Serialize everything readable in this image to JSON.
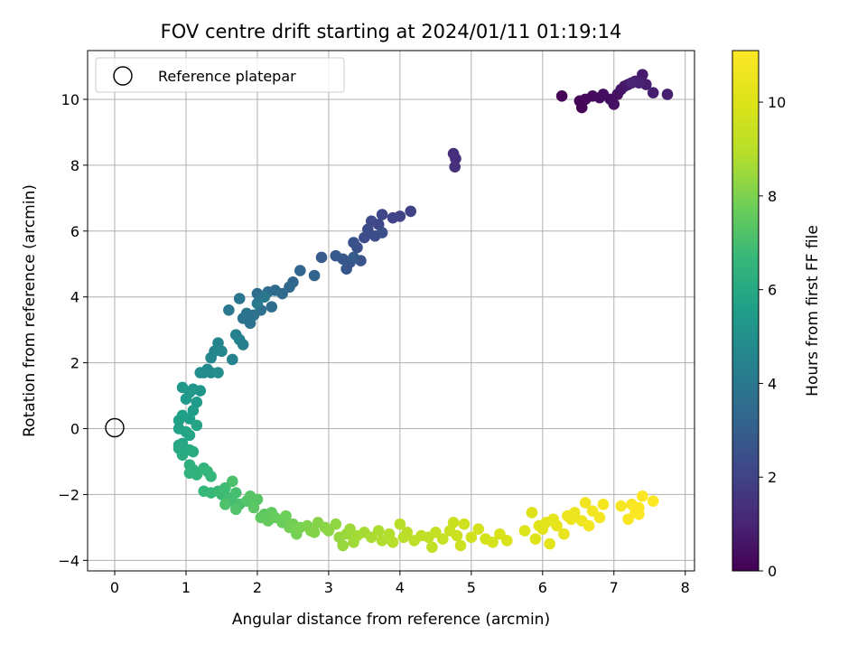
{
  "chart_data": {
    "type": "scatter",
    "title": "FOV centre drift starting at 2024/01/11 01:19:14",
    "xlabel": "Angular distance from reference (arcmin)",
    "ylabel": "Rotation from reference (arcmin)",
    "xlim": [
      -0.38,
      8.13
    ],
    "ylim": [
      -4.32,
      11.48
    ],
    "xticks": [
      "0",
      "1",
      "2",
      "3",
      "4",
      "5",
      "6",
      "7",
      "8"
    ],
    "yticks": [
      "−4",
      "−2",
      "0",
      "2",
      "4",
      "6",
      "8",
      "10"
    ],
    "grid": true,
    "legend": {
      "position": "top-left",
      "entries": [
        "Reference platepar"
      ]
    },
    "reference_point": {
      "x": 0,
      "y": 0
    },
    "colorbar": {
      "label": "Hours from first FF file",
      "range": [
        0,
        11.1
      ],
      "ticks": [
        "0",
        "2",
        "4",
        "6",
        "8",
        "10"
      ],
      "colormap": "viridis"
    },
    "points": [
      [
        6.27,
        10.1,
        0.05
      ],
      [
        6.52,
        9.95,
        0.1
      ],
      [
        6.55,
        9.75,
        0.15
      ],
      [
        6.6,
        10.0,
        0.2
      ],
      [
        6.7,
        10.1,
        0.25
      ],
      [
        6.8,
        10.05,
        0.3
      ],
      [
        6.85,
        10.15,
        0.35
      ],
      [
        6.95,
        10.0,
        0.4
      ],
      [
        7.0,
        9.85,
        0.45
      ],
      [
        7.05,
        10.15,
        0.5
      ],
      [
        7.1,
        10.3,
        0.55
      ],
      [
        7.15,
        10.4,
        0.6
      ],
      [
        7.2,
        10.45,
        0.65
      ],
      [
        7.3,
        10.55,
        0.7
      ],
      [
        7.4,
        10.75,
        0.75
      ],
      [
        7.45,
        10.45,
        0.8
      ],
      [
        7.55,
        10.2,
        0.85
      ],
      [
        7.75,
        10.15,
        0.9
      ],
      [
        7.35,
        10.5,
        0.95
      ],
      [
        7.25,
        10.5,
        1.0
      ],
      [
        4.75,
        8.35,
        1.3
      ],
      [
        4.78,
        8.2,
        1.35
      ],
      [
        4.77,
        7.95,
        1.4
      ],
      [
        4.15,
        6.6,
        2.0
      ],
      [
        4.0,
        6.45,
        2.05
      ],
      [
        3.9,
        6.4,
        2.1
      ],
      [
        3.75,
        6.5,
        2.15
      ],
      [
        3.7,
        6.2,
        2.2
      ],
      [
        3.6,
        6.3,
        2.25
      ],
      [
        3.55,
        6.05,
        2.3
      ],
      [
        3.5,
        5.8,
        2.35
      ],
      [
        3.65,
        5.85,
        2.4
      ],
      [
        3.75,
        5.95,
        2.45
      ],
      [
        3.4,
        5.5,
        2.5
      ],
      [
        3.35,
        5.65,
        2.55
      ],
      [
        3.45,
        5.1,
        2.6
      ],
      [
        3.3,
        5.05,
        2.65
      ],
      [
        3.25,
        4.85,
        2.7
      ],
      [
        3.2,
        5.15,
        2.75
      ],
      [
        3.1,
        5.25,
        2.8
      ],
      [
        2.9,
        5.2,
        2.85
      ],
      [
        3.35,
        5.2,
        2.9
      ],
      [
        2.8,
        4.65,
        3.2
      ],
      [
        2.6,
        4.8,
        3.25
      ],
      [
        2.5,
        4.45,
        3.3
      ],
      [
        2.45,
        4.3,
        3.35
      ],
      [
        2.35,
        4.1,
        3.4
      ],
      [
        2.25,
        4.2,
        3.45
      ],
      [
        2.15,
        4.15,
        3.5
      ],
      [
        2.0,
        4.1,
        3.55
      ],
      [
        2.2,
        3.7,
        3.6
      ],
      [
        2.05,
        3.6,
        3.65
      ],
      [
        1.95,
        3.45,
        3.7
      ],
      [
        1.9,
        3.2,
        3.75
      ],
      [
        1.85,
        3.5,
        3.8
      ],
      [
        1.8,
        3.35,
        3.85
      ],
      [
        1.75,
        3.95,
        3.9
      ],
      [
        1.6,
        3.6,
        3.95
      ],
      [
        2.1,
        4.0,
        4.0
      ],
      [
        2.0,
        3.8,
        4.05
      ],
      [
        1.8,
        2.55,
        4.3
      ],
      [
        1.7,
        2.85,
        4.35
      ],
      [
        1.75,
        2.7,
        4.4
      ],
      [
        1.65,
        2.1,
        4.45
      ],
      [
        1.45,
        2.6,
        4.5
      ],
      [
        1.4,
        2.35,
        4.55
      ],
      [
        1.35,
        2.15,
        4.6
      ],
      [
        1.5,
        2.35,
        4.65
      ],
      [
        1.3,
        1.8,
        4.7
      ],
      [
        1.25,
        1.7,
        4.75
      ],
      [
        1.35,
        1.7,
        4.8
      ],
      [
        1.2,
        1.7,
        4.85
      ],
      [
        1.45,
        1.7,
        4.9
      ],
      [
        1.2,
        1.15,
        5.2
      ],
      [
        1.1,
        1.2,
        5.25
      ],
      [
        1.05,
        1.1,
        5.3
      ],
      [
        0.95,
        1.25,
        5.35
      ],
      [
        1.0,
        0.9,
        5.4
      ],
      [
        1.15,
        0.8,
        5.45
      ],
      [
        1.1,
        0.55,
        5.5
      ],
      [
        1.05,
        0.3,
        5.55
      ],
      [
        0.95,
        0.4,
        5.6
      ],
      [
        0.9,
        0.25,
        5.65
      ],
      [
        0.9,
        0.0,
        5.7
      ],
      [
        1.0,
        -0.1,
        5.75
      ],
      [
        1.05,
        -0.2,
        5.8
      ],
      [
        1.15,
        0.1,
        5.85
      ],
      [
        0.95,
        -0.45,
        5.9
      ],
      [
        0.9,
        -0.5,
        5.95
      ],
      [
        0.9,
        -0.6,
        6.0
      ],
      [
        1.05,
        -0.65,
        6.05
      ],
      [
        0.95,
        -0.8,
        6.1
      ],
      [
        1.1,
        -0.7,
        6.15
      ],
      [
        1.05,
        -1.1,
        6.3
      ],
      [
        1.1,
        -1.25,
        6.35
      ],
      [
        1.05,
        -1.35,
        6.4
      ],
      [
        1.15,
        -1.4,
        6.45
      ],
      [
        1.25,
        -1.2,
        6.5
      ],
      [
        1.3,
        -1.3,
        6.55
      ],
      [
        1.35,
        -1.45,
        6.6
      ],
      [
        1.25,
        -1.9,
        6.65
      ],
      [
        1.35,
        -1.95,
        6.7
      ],
      [
        1.45,
        -1.9,
        6.75
      ],
      [
        1.5,
        -2.0,
        6.8
      ],
      [
        1.55,
        -1.8,
        6.85
      ],
      [
        1.6,
        -2.1,
        6.9
      ],
      [
        1.65,
        -2.2,
        6.95
      ],
      [
        1.7,
        -1.95,
        7.0
      ],
      [
        1.75,
        -2.3,
        7.05
      ],
      [
        1.65,
        -1.6,
        7.1
      ],
      [
        1.55,
        -2.3,
        7.15
      ],
      [
        1.7,
        -2.45,
        7.2
      ],
      [
        1.85,
        -2.2,
        7.25
      ],
      [
        1.9,
        -2.05,
        7.3
      ],
      [
        2.0,
        -2.15,
        7.35
      ],
      [
        1.95,
        -2.4,
        7.4
      ],
      [
        2.1,
        -2.6,
        7.45
      ],
      [
        2.05,
        -2.7,
        7.5
      ],
      [
        2.2,
        -2.55,
        7.55
      ],
      [
        2.15,
        -2.8,
        7.6
      ],
      [
        2.25,
        -2.7,
        7.65
      ],
      [
        2.35,
        -2.85,
        7.7
      ],
      [
        2.4,
        -2.65,
        7.75
      ],
      [
        2.5,
        -2.9,
        7.8
      ],
      [
        2.45,
        -3.0,
        7.85
      ],
      [
        2.55,
        -3.2,
        7.9
      ],
      [
        2.6,
        -3.0,
        7.95
      ],
      [
        2.7,
        -2.95,
        8.0
      ],
      [
        2.75,
        -3.1,
        8.05
      ],
      [
        2.8,
        -3.15,
        8.1
      ],
      [
        2.85,
        -2.85,
        8.15
      ],
      [
        2.95,
        -3.0,
        8.2
      ],
      [
        3.0,
        -3.1,
        8.25
      ],
      [
        3.1,
        -2.9,
        8.3
      ],
      [
        3.15,
        -3.3,
        8.35
      ],
      [
        3.2,
        -3.55,
        8.4
      ],
      [
        3.25,
        -3.2,
        8.45
      ],
      [
        3.3,
        -3.05,
        8.5
      ],
      [
        3.35,
        -3.45,
        8.55
      ],
      [
        3.4,
        -3.25,
        8.6
      ],
      [
        3.5,
        -3.15,
        8.65
      ],
      [
        3.6,
        -3.3,
        8.7
      ],
      [
        3.7,
        -3.1,
        8.75
      ],
      [
        3.75,
        -3.4,
        8.8
      ],
      [
        3.85,
        -3.2,
        8.85
      ],
      [
        3.9,
        -3.45,
        8.9
      ],
      [
        4.0,
        -2.9,
        8.95
      ],
      [
        4.05,
        -3.3,
        9.0
      ],
      [
        4.1,
        -3.15,
        9.05
      ],
      [
        4.2,
        -3.4,
        9.1
      ],
      [
        4.3,
        -3.25,
        9.15
      ],
      [
        4.4,
        -3.3,
        9.2
      ],
      [
        4.45,
        -3.6,
        9.25
      ],
      [
        4.5,
        -3.15,
        9.3
      ],
      [
        4.6,
        -3.35,
        9.35
      ],
      [
        4.7,
        -3.1,
        9.4
      ],
      [
        4.75,
        -2.85,
        9.45
      ],
      [
        4.8,
        -3.25,
        9.5
      ],
      [
        4.85,
        -3.55,
        9.55
      ],
      [
        4.9,
        -2.9,
        9.6
      ],
      [
        5.0,
        -3.3,
        9.65
      ],
      [
        5.1,
        -3.05,
        9.7
      ],
      [
        5.2,
        -3.35,
        9.75
      ],
      [
        5.3,
        -3.45,
        9.8
      ],
      [
        5.4,
        -3.2,
        9.85
      ],
      [
        5.5,
        -3.4,
        9.9
      ],
      [
        5.75,
        -3.1,
        9.95
      ],
      [
        5.85,
        -2.55,
        10.0
      ],
      [
        5.9,
        -3.35,
        10.05
      ],
      [
        5.95,
        -2.95,
        10.1
      ],
      [
        6.0,
        -3.05,
        10.15
      ],
      [
        6.05,
        -2.85,
        10.2
      ],
      [
        6.1,
        -3.5,
        10.25
      ],
      [
        6.15,
        -2.75,
        10.3
      ],
      [
        6.2,
        -2.95,
        10.35
      ],
      [
        6.3,
        -3.2,
        10.4
      ],
      [
        6.35,
        -2.65,
        10.45
      ],
      [
        6.4,
        -2.75,
        10.5
      ],
      [
        6.45,
        -2.55,
        10.55
      ],
      [
        6.55,
        -2.8,
        10.6
      ],
      [
        6.6,
        -2.25,
        10.65
      ],
      [
        6.65,
        -2.95,
        10.7
      ],
      [
        6.7,
        -2.5,
        10.75
      ],
      [
        6.8,
        -2.7,
        10.8
      ],
      [
        6.85,
        -2.3,
        10.85
      ],
      [
        7.1,
        -2.35,
        10.9
      ],
      [
        7.2,
        -2.75,
        10.95
      ],
      [
        7.25,
        -2.3,
        11.0
      ],
      [
        7.3,
        -2.55,
        11.05
      ],
      [
        7.35,
        -2.4,
        11.05
      ],
      [
        7.4,
        -2.05,
        11.1
      ],
      [
        7.35,
        -2.6,
        11.1
      ],
      [
        7.55,
        -2.2,
        11.1
      ]
    ]
  }
}
